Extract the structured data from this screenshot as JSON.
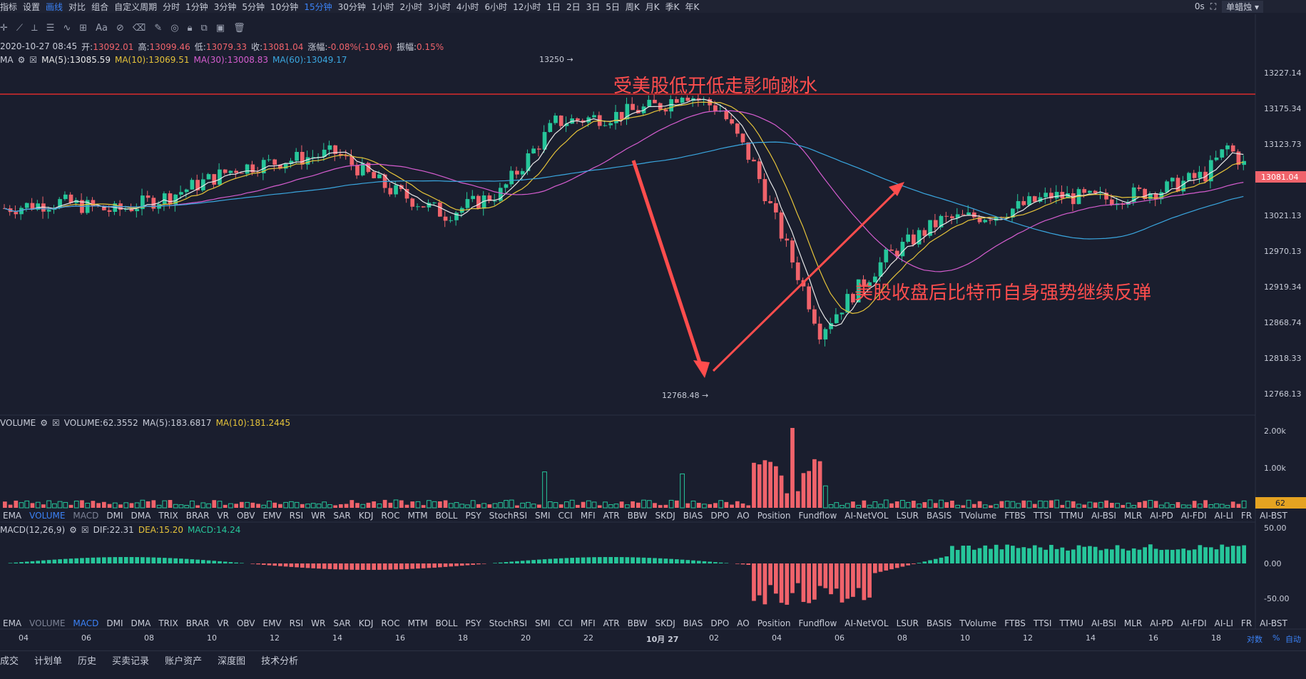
{
  "topbar": {
    "items": [
      "指标",
      "设置",
      "画线",
      "对比",
      "组合",
      "自定义周期",
      "分时",
      "1分钟",
      "3分钟",
      "5分钟",
      "10分钟",
      "15分钟",
      "30分钟",
      "1小时",
      "2小时",
      "3小时",
      "4小时",
      "6小时",
      "12小时",
      "1日",
      "2日",
      "3日",
      "5日",
      "周K",
      "月K",
      "季K",
      "年K"
    ],
    "active_indices": [
      2,
      11
    ],
    "right_label": "0s",
    "chart_type_select": "单蜡烛"
  },
  "info": {
    "date": "2020-10-27 08:45",
    "open_label": "开:",
    "open": "13092.01",
    "high_label": "高:",
    "high": "13099.46",
    "low_label": "低:",
    "low": "13079.33",
    "close_label": "收:",
    "close": "13081.04",
    "change_label": "涨幅:",
    "change": "-0.08%(-10.96)",
    "amp_label": "振幅:",
    "amp": "0.15%"
  },
  "ma": {
    "name": "MA",
    "ma5": "MA(5):13085.59",
    "ma10": "MA(10):13069.51",
    "ma30": "MA(30):13008.83",
    "ma60": "MA(60):13049.17"
  },
  "volume": {
    "name": "VOLUME",
    "value": "VOLUME:62.3552",
    "ma5": "MA(5):183.6817",
    "ma10": "MA(10):181.2445",
    "last_tag": "62",
    "axis": [
      "2.00k",
      "1.00k"
    ]
  },
  "macd": {
    "name": "MACD(12,26,9)",
    "dif": "DIF:22.31",
    "dea": "DEA:15.20",
    "macd": "MACD:14.24",
    "axis": [
      "50.00",
      "0.00",
      "-50.00"
    ]
  },
  "price_axis": [
    "13227.14",
    "13175.34",
    "13123.73",
    "13021.13",
    "12970.13",
    "12919.34",
    "12868.74",
    "12818.33",
    "12768.13"
  ],
  "last_price_tag": "13081.04",
  "extremes": {
    "high": "13250",
    "low": "12768.48"
  },
  "annotations": {
    "top": "受美股低开低走影响跳水",
    "right": "美股收盘后比特币自身强势继续反弹"
  },
  "indicator_tabs": [
    "EMA",
    "VOLUME",
    "MACD",
    "DMI",
    "DMA",
    "TRIX",
    "BRAR",
    "VR",
    "OBV",
    "EMV",
    "RSI",
    "WR",
    "SAR",
    "KDJ",
    "ROC",
    "MTM",
    "BOLL",
    "PSY",
    "StochRSI",
    "SMI",
    "CCI",
    "MFI",
    "ATR",
    "BBW",
    "SKDJ",
    "BIAS",
    "DPO",
    "AO",
    "Position",
    "Fundflow",
    "AI-NetVOL",
    "LSUR",
    "BASIS",
    "TVolume",
    "FTBS",
    "TTSI",
    "TTMU",
    "AI-BSI",
    "MLR",
    "AI-PD",
    "AI-FDI",
    "AI-LI",
    "FR",
    "AI-BST"
  ],
  "x_axis": [
    "04",
    "06",
    "08",
    "10",
    "12",
    "14",
    "16",
    "18",
    "20",
    "22",
    "10月 27",
    "02",
    "04",
    "06",
    "08",
    "10",
    "12",
    "14",
    "16",
    "18"
  ],
  "x_axis_right": [
    "对数",
    "%",
    "自动"
  ],
  "bottom_tabs": [
    "成交",
    "计划单",
    "历史",
    "买卖记录",
    "账户资产",
    "深度图",
    "技术分析"
  ],
  "colors": {
    "up": "#26c69a",
    "down": "#f0636b",
    "ma5": "#e8e8e8",
    "ma10": "#e5c33a",
    "ma30": "#d65dd0",
    "ma60": "#3aa7e0",
    "accent": "#3b82f6",
    "annotation": "#ff4d4d",
    "resistance": "#d92b2b"
  }
}
